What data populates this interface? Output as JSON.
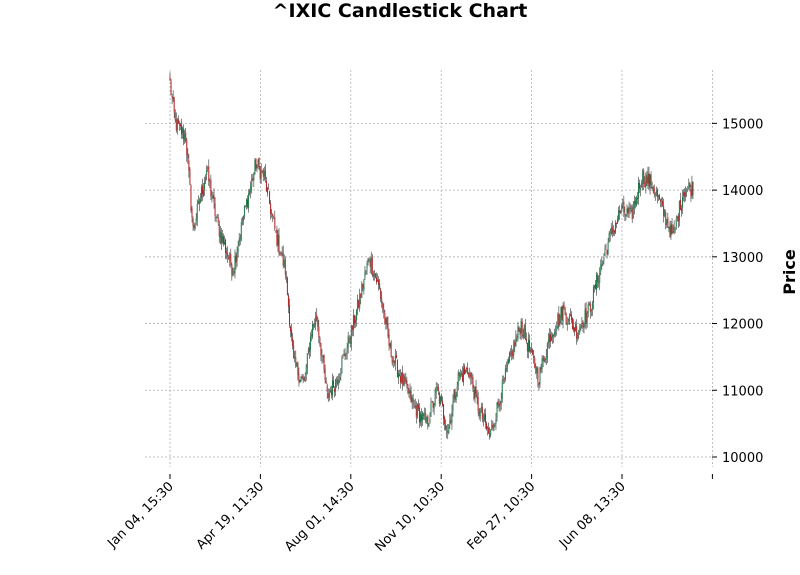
{
  "chart_data": {
    "type": "candlestick",
    "title": "^IXIC Candlestick Chart",
    "xlabel": "",
    "ylabel": "Price",
    "ylim": [
      9850,
      15800
    ],
    "y_ticks": [
      10000,
      11000,
      12000,
      13000,
      14000,
      15000
    ],
    "x_ticks": [
      "Jan 04, 15:30",
      "Apr 19, 11:30",
      "Aug 01, 14:30",
      "Nov 10, 10:30",
      "Feb 27, 10:30",
      "Jun 08, 13:30"
    ],
    "grid": true,
    "y_axis_side": "right",
    "up_color": "#1f7a4a",
    "down_color": "#b22222",
    "candles": 500,
    "path_closes": [
      [
        0,
        15600
      ],
      [
        5,
        15000
      ],
      [
        15,
        14800
      ],
      [
        22,
        13400
      ],
      [
        35,
        14300
      ],
      [
        45,
        13500
      ],
      [
        60,
        12800
      ],
      [
        70,
        13600
      ],
      [
        82,
        14400
      ],
      [
        90,
        14200
      ],
      [
        100,
        13400
      ],
      [
        110,
        12800
      ],
      [
        118,
        11400
      ],
      [
        128,
        11100
      ],
      [
        135,
        11900
      ],
      [
        140,
        12100
      ],
      [
        150,
        10900
      ],
      [
        160,
        11200
      ],
      [
        170,
        11700
      ],
      [
        180,
        12300
      ],
      [
        190,
        13000
      ],
      [
        200,
        12500
      ],
      [
        210,
        11600
      ],
      [
        220,
        11200
      ],
      [
        235,
        10700
      ],
      [
        245,
        10500
      ],
      [
        255,
        11000
      ],
      [
        265,
        10400
      ],
      [
        275,
        11200
      ],
      [
        285,
        11300
      ],
      [
        293,
        10800
      ],
      [
        305,
        10300
      ],
      [
        315,
        10900
      ],
      [
        325,
        11500
      ],
      [
        335,
        12000
      ],
      [
        345,
        11500
      ],
      [
        352,
        11200
      ],
      [
        362,
        11800
      ],
      [
        375,
        12200
      ],
      [
        388,
        11900
      ],
      [
        400,
        12200
      ],
      [
        410,
        12800
      ],
      [
        420,
        13300
      ],
      [
        430,
        13700
      ],
      [
        440,
        13600
      ],
      [
        450,
        14200
      ],
      [
        460,
        14100
      ],
      [
        470,
        13700
      ],
      [
        480,
        13300
      ],
      [
        490,
        14000
      ],
      [
        499,
        14050
      ]
    ]
  }
}
